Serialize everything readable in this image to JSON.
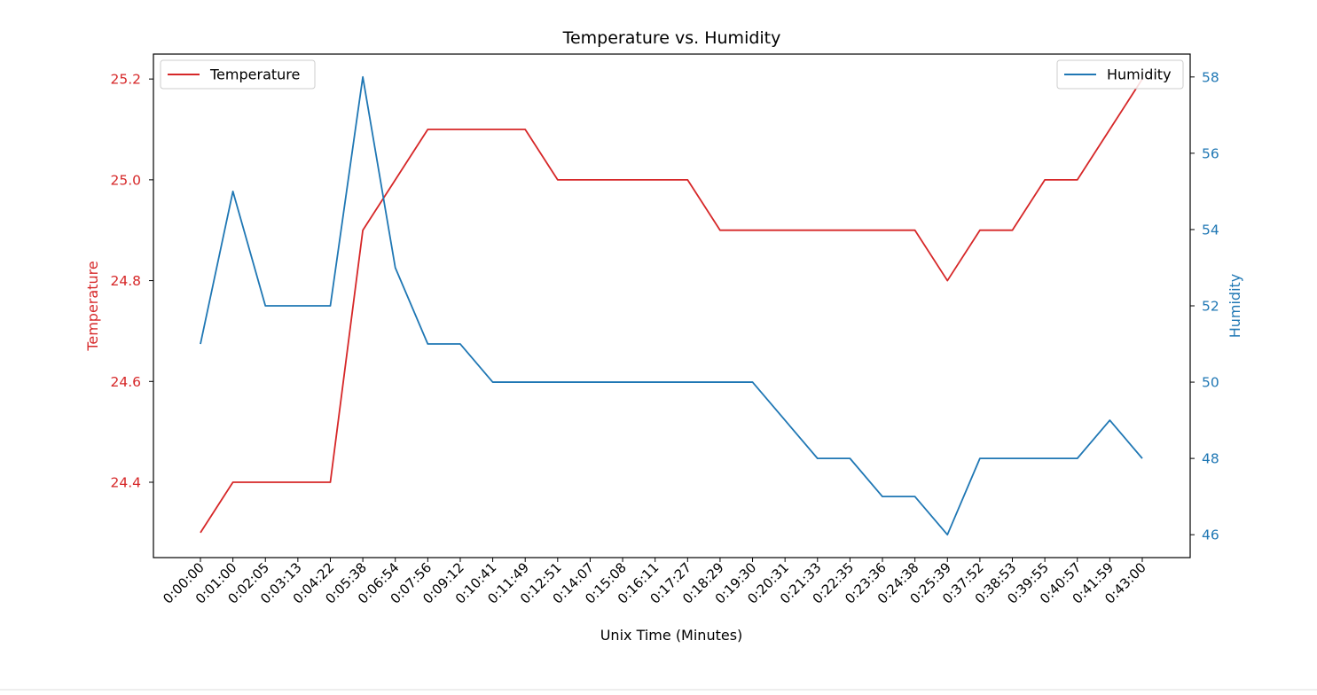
{
  "chart_data": {
    "type": "line",
    "title": "Temperature vs. Humidity",
    "xlabel": "Unix Time (Minutes)",
    "x": [
      "0:00:00",
      "0:01:00",
      "0:02:05",
      "0:03:13",
      "0:04:22",
      "0:05:38",
      "0:06:54",
      "0:07:56",
      "0:09:12",
      "0:10:41",
      "0:11:49",
      "0:12:51",
      "0:14:07",
      "0:15:08",
      "0:16:11",
      "0:17:27",
      "0:18:29",
      "0:19:30",
      "0:20:31",
      "0:21:33",
      "0:22:35",
      "0:23:36",
      "0:24:38",
      "0:25:39",
      "0:37:52",
      "0:38:53",
      "0:39:55",
      "0:40:57",
      "0:41:59",
      "0:43:00"
    ],
    "series": [
      {
        "name": "Temperature",
        "axis": "left",
        "color": "#d62728",
        "values": [
          24.3,
          24.4,
          24.4,
          24.4,
          24.4,
          24.9,
          25.0,
          25.1,
          25.1,
          25.1,
          25.1,
          25.0,
          25.0,
          25.0,
          25.0,
          25.0,
          24.9,
          24.9,
          24.9,
          24.9,
          24.9,
          24.9,
          24.9,
          24.8,
          24.9,
          24.9,
          25.0,
          25.0,
          25.1,
          25.2
        ]
      },
      {
        "name": "Humidity",
        "axis": "right",
        "color": "#1f77b4",
        "values": [
          51,
          55,
          52,
          52,
          52,
          58,
          53,
          51,
          51,
          50,
          50,
          50,
          50,
          50,
          50,
          50,
          50,
          50,
          49,
          48,
          48,
          47,
          47,
          46,
          48,
          48,
          48,
          48,
          49,
          48
        ]
      }
    ],
    "y_left": {
      "label": "Temperature",
      "ylim": [
        24.2505,
        25.2495
      ],
      "ticks": [
        24.4,
        24.6,
        24.8,
        25.0,
        25.2
      ],
      "tick_labels": [
        "24.4",
        "24.6",
        "24.8",
        "25.0",
        "25.2"
      ],
      "color": "#d62728"
    },
    "y_right": {
      "label": "Humidity",
      "ylim": [
        45.4,
        58.6
      ],
      "ticks": [
        46,
        48,
        50,
        52,
        54,
        56,
        58
      ],
      "tick_labels": [
        "46",
        "48",
        "50",
        "52",
        "54",
        "56",
        "58"
      ],
      "color": "#1f77b4"
    },
    "legends": [
      {
        "series": "Temperature",
        "placement": "top-left"
      },
      {
        "series": "Humidity",
        "placement": "top-right"
      }
    ],
    "grid": false
  }
}
